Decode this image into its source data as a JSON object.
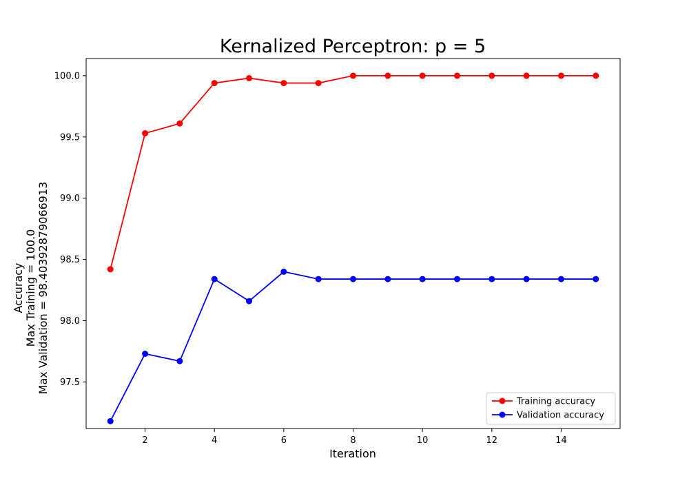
{
  "chart_data": {
    "type": "line",
    "title": "Kernalized Perceptron: p = 5",
    "xlabel": "Iteration",
    "ylabel_lines": [
      "Accuracy",
      "Max Training = 100.0",
      "Max Validation = 98.40392879066913"
    ],
    "xlim": [
      0.3,
      15.7
    ],
    "ylim": [
      97.12,
      100.14
    ],
    "xticks": [
      2,
      4,
      6,
      8,
      10,
      12,
      14
    ],
    "yticks": [
      97.5,
      98.0,
      98.5,
      99.0,
      99.5,
      100.0
    ],
    "ytick_labels": [
      "97.5",
      "98.0",
      "98.5",
      "99.0",
      "99.5",
      "100.0"
    ],
    "grid": false,
    "legend_position": "lower-right",
    "x": [
      1,
      2,
      3,
      4,
      5,
      6,
      7,
      8,
      9,
      10,
      11,
      12,
      13,
      14,
      15
    ],
    "series": [
      {
        "name": "Training accuracy",
        "color": "#ff0000",
        "marker": "circle",
        "values": [
          98.42,
          99.53,
          99.61,
          99.94,
          99.98,
          99.94,
          99.94,
          100.0,
          100.0,
          100.0,
          100.0,
          100.0,
          100.0,
          100.0,
          100.0
        ]
      },
      {
        "name": "Validation accuracy",
        "color": "#0000ff",
        "marker": "circle",
        "values": [
          97.18,
          97.73,
          97.67,
          98.34,
          98.16,
          98.4,
          98.34,
          98.34,
          98.34,
          98.34,
          98.34,
          98.34,
          98.34,
          98.34,
          98.34
        ]
      }
    ]
  }
}
